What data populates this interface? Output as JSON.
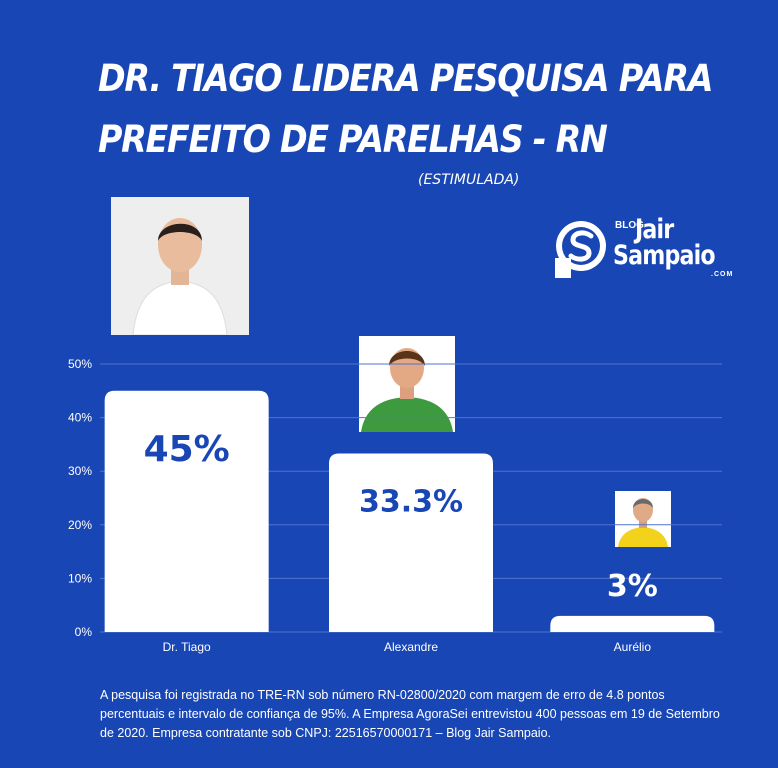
{
  "header": {
    "title_line1": "DR. TIAGO LIDERA  PESQUISA PARA",
    "title_line2": "PREFEITO DE PARELHAS - RN",
    "subtitle": "(ESTIMULADA)"
  },
  "logo": {
    "blog": "BLOG",
    "jair": "Jair",
    "sampaio": "Sampaio",
    "com": ".COM"
  },
  "colors": {
    "background": "#1846b5",
    "bar": "#ffffff",
    "value_text": "#1846b5",
    "axis_text": "#ffffff",
    "grid": "#4f74cf"
  },
  "chart_data": {
    "type": "bar",
    "categories": [
      "Dr. Tiago",
      "Alexandre",
      "Aurélio"
    ],
    "values": [
      45,
      33.3,
      3
    ],
    "value_labels": [
      "45%",
      "33.3%",
      "3%"
    ],
    "y_ticks": [
      "0%",
      "10%",
      "20%",
      "30%",
      "40%",
      "50%"
    ],
    "y_tick_values": [
      0,
      10,
      20,
      30,
      40,
      50
    ],
    "ylim": [
      0,
      50
    ],
    "grid": true
  },
  "footnote": "A pesquisa foi registrada no TRE-RN sob número RN-02800/2020 com margem de erro de 4.8 pontos percentuais e intervalo de confiança de 95%. A Empresa AgoraSei entrevistou 400 pessoas em 19 de Setembro de 2020. Empresa contratante sob CNPJ: 22516570000171 – Blog Jair Sampaio."
}
